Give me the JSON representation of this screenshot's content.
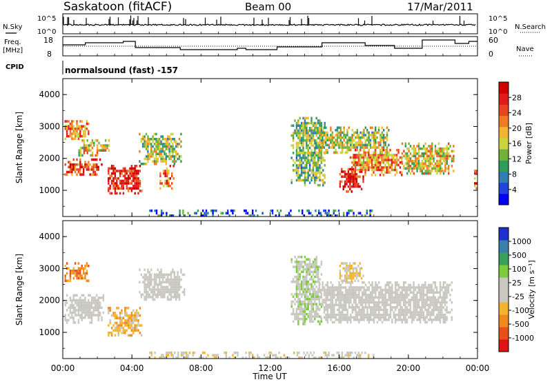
{
  "header": {
    "station": "Saskatoon (fitACF)",
    "beam": "Beam 00",
    "date": "17/Mar/2011"
  },
  "left_labels": {
    "nsky": "N.Sky",
    "freq_line1": "Freq.",
    "freq_line2": "[MHz]",
    "cpid": "CPID"
  },
  "right_labels": {
    "nsearch": "N.Search",
    "nave": "Nave"
  },
  "cpid_value": "normalsound (fast) -157",
  "axes": {
    "xlabel": "Time UT",
    "ylabel": "Slant Range [km]",
    "x_ticks": [
      "00:00",
      "04:00",
      "08:00",
      "12:00",
      "16:00",
      "20:00",
      "00:00"
    ],
    "y_ticks": [
      "1000",
      "2000",
      "3000",
      "4000"
    ],
    "noise_ticks": [
      "10^5",
      "10^0"
    ],
    "noise_ticks_right": [
      "10^5",
      "10^0"
    ],
    "freq_ticks": [
      "18",
      "8"
    ],
    "nave_ticks": [
      "60",
      "0"
    ]
  },
  "colorbars": {
    "power": {
      "label": "Power [dB]",
      "ticks": [
        "28",
        "24",
        "20",
        "16",
        "12",
        "8",
        "4"
      ],
      "colors": [
        "#0000ff",
        "#2244dd",
        "#2e7fb0",
        "#2e9c5a",
        "#72b23a",
        "#cbd43c",
        "#f5b430",
        "#f07a22",
        "#e84520",
        "#e01b1b",
        "#d00000"
      ]
    },
    "velocity": {
      "label": "Velocity [m s⁻¹]",
      "ticks": [
        "1000",
        "500",
        "100",
        "25",
        "-25",
        "-100",
        "-500",
        "-1000"
      ],
      "colors": [
        "#2030d0",
        "#3a7fa8",
        "#37a05a",
        "#7ccc3c",
        "#c8c8c0",
        "#c8c8c0",
        "#f5b430",
        "#f08a1e",
        "#e85018",
        "#e01414"
      ]
    }
  },
  "chart_data": {
    "type": "heatmap",
    "title": "Saskatoon (fitACF) Beam 00 17/Mar/2011",
    "xlabel": "Time UT",
    "ylabel": "Slant Range [km]",
    "xlim_hours": [
      0,
      24
    ],
    "ylim_km": [
      180,
      4500
    ],
    "panels": [
      {
        "name": "Power [dB]",
        "zlim": [
          0,
          30
        ],
        "regions": [
          {
            "t": [
              0.1,
              1.5
            ],
            "r": [
              2600,
              3200
            ],
            "value": 20
          },
          {
            "t": [
              0.1,
              2.3
            ],
            "r": [
              1500,
              2000
            ],
            "value": 24
          },
          {
            "t": [
              0.9,
              2.8
            ],
            "r": [
              2100,
              2600
            ],
            "value": 16
          },
          {
            "t": [
              2.6,
              4.6
            ],
            "r": [
              900,
              1800
            ],
            "value": 26
          },
          {
            "t": [
              4.4,
              6.8
            ],
            "r": [
              1800,
              2800
            ],
            "value": 14
          },
          {
            "t": [
              5.6,
              6.4
            ],
            "r": [
              1100,
              1800
            ],
            "value": 22
          },
          {
            "t": [
              13.2,
              15.2
            ],
            "r": [
              1200,
              3300
            ],
            "value": 12
          },
          {
            "t": [
              14.6,
              19.0
            ],
            "r": [
              2200,
              3000
            ],
            "value": 14
          },
          {
            "t": [
              16.0,
              17.4
            ],
            "r": [
              1000,
              1700
            ],
            "value": 26
          },
          {
            "t": [
              16.6,
              19.6
            ],
            "r": [
              1500,
              2300
            ],
            "value": 20
          },
          {
            "t": [
              19.6,
              22.6
            ],
            "r": [
              1500,
              2500
            ],
            "value": 16
          },
          {
            "t": [
              23.8,
              24.0
            ],
            "r": [
              900,
              1800
            ],
            "value": 22
          },
          {
            "t": [
              5.0,
              18.0
            ],
            "r": [
              180,
              400
            ],
            "value": 6
          }
        ]
      },
      {
        "name": "Velocity [m s⁻¹]",
        "zlim": [
          -1000,
          1000
        ],
        "regions": [
          {
            "t": [
              0.1,
              1.5
            ],
            "r": [
              2600,
              3200
            ],
            "value": -500
          },
          {
            "t": [
              0.1,
              2.4
            ],
            "r": [
              1300,
              2200
            ],
            "value": 0
          },
          {
            "t": [
              2.6,
              4.6
            ],
            "r": [
              900,
              1800
            ],
            "value": -300
          },
          {
            "t": [
              4.4,
              7.0
            ],
            "r": [
              2000,
              3000
            ],
            "value": 0
          },
          {
            "t": [
              13.2,
              15.0
            ],
            "r": [
              1300,
              3400
            ],
            "value": 100
          },
          {
            "t": [
              14.8,
              22.5
            ],
            "r": [
              1300,
              2600
            ],
            "value": 0
          },
          {
            "t": [
              16.0,
              17.4
            ],
            "r": [
              2600,
              3200
            ],
            "value": -200
          },
          {
            "t": [
              5.0,
              18.0
            ],
            "r": [
              180,
              400
            ],
            "value": -100
          }
        ]
      }
    ]
  }
}
